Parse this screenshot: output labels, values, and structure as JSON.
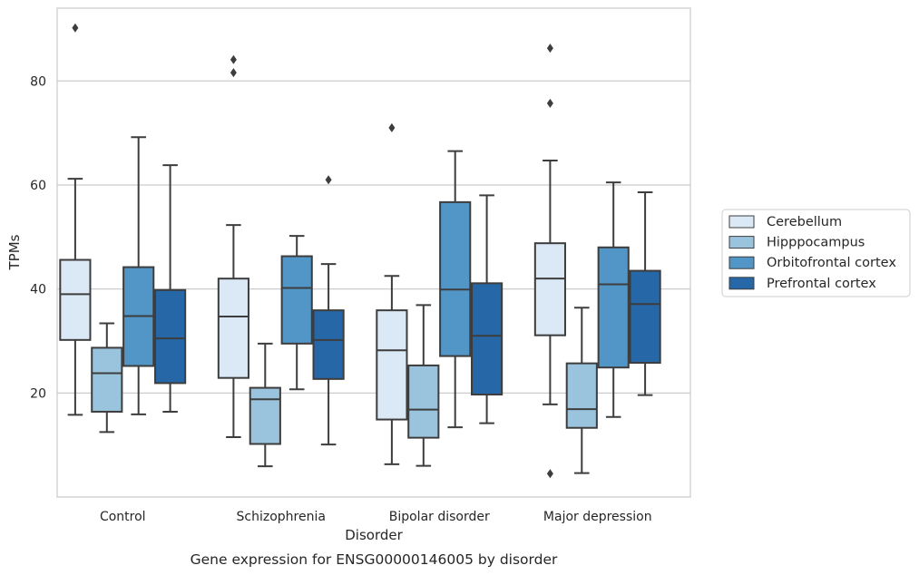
{
  "chart_data": {
    "type": "boxplot",
    "title": "",
    "caption": "Gene expression for ENSG00000146005 by disorder",
    "xlabel": "Disorder",
    "ylabel": "TPMs",
    "ylim": [
      0,
      94
    ],
    "yticks": [
      "20",
      "40",
      "60",
      "80"
    ],
    "grid": "horizontal",
    "legend_position": "right-outside",
    "categories": [
      "Control",
      "Schizophrenia",
      "Bipolar disorder",
      "Major depression"
    ],
    "series": [
      {
        "name": "Cerebellum",
        "color": "#dbe8f5",
        "boxes": [
          {
            "whislo": 15.8,
            "q1": 30.2,
            "med": 39.0,
            "q3": 45.6,
            "whishi": 61.2,
            "fliers": [
              90.2
            ]
          },
          {
            "whislo": 11.5,
            "q1": 22.9,
            "med": 34.7,
            "q3": 42.0,
            "whishi": 52.3,
            "fliers": [
              81.6,
              84.1
            ]
          },
          {
            "whislo": 6.3,
            "q1": 14.9,
            "med": 28.2,
            "q3": 35.9,
            "whishi": 42.5,
            "fliers": [
              71.0
            ]
          },
          {
            "whislo": 17.8,
            "q1": 31.1,
            "med": 42.0,
            "q3": 48.8,
            "whishi": 64.7,
            "fliers": [
              4.5,
              75.7,
              86.3
            ]
          }
        ]
      },
      {
        "name": "Hipppocampus",
        "color": "#9ac3dd",
        "boxes": [
          {
            "whislo": 12.5,
            "q1": 16.4,
            "med": 23.8,
            "q3": 28.7,
            "whishi": 33.4,
            "fliers": []
          },
          {
            "whislo": 5.9,
            "q1": 10.2,
            "med": 18.8,
            "q3": 21.0,
            "whishi": 29.5,
            "fliers": []
          },
          {
            "whislo": 6.0,
            "q1": 11.4,
            "med": 16.8,
            "q3": 25.3,
            "whishi": 36.9,
            "fliers": []
          },
          {
            "whislo": 4.6,
            "q1": 13.3,
            "med": 16.9,
            "q3": 25.7,
            "whishi": 36.4,
            "fliers": []
          }
        ]
      },
      {
        "name": "Orbitofrontal cortex",
        "color": "#5196c7",
        "boxes": [
          {
            "whislo": 15.9,
            "q1": 25.2,
            "med": 34.8,
            "q3": 44.2,
            "whishi": 69.2,
            "fliers": []
          },
          {
            "whislo": 20.7,
            "q1": 29.5,
            "med": 40.2,
            "q3": 46.3,
            "whishi": 50.2,
            "fliers": []
          },
          {
            "whislo": 13.4,
            "q1": 27.1,
            "med": 39.9,
            "q3": 56.7,
            "whishi": 66.5,
            "fliers": []
          },
          {
            "whislo": 15.4,
            "q1": 24.9,
            "med": 40.9,
            "q3": 48.0,
            "whishi": 60.5,
            "fliers": []
          }
        ]
      },
      {
        "name": "Prefrontal cortex",
        "color": "#2667a8",
        "boxes": [
          {
            "whislo": 16.4,
            "q1": 21.9,
            "med": 30.5,
            "q3": 39.8,
            "whishi": 63.8,
            "fliers": []
          },
          {
            "whislo": 10.1,
            "q1": 22.7,
            "med": 30.2,
            "q3": 35.9,
            "whishi": 44.8,
            "fliers": [
              61.0
            ]
          },
          {
            "whislo": 14.2,
            "q1": 19.7,
            "med": 31.0,
            "q3": 41.1,
            "whishi": 58.0,
            "fliers": []
          },
          {
            "whislo": 19.6,
            "q1": 25.8,
            "med": 37.1,
            "q3": 43.5,
            "whishi": 58.6,
            "fliers": []
          }
        ]
      }
    ]
  }
}
